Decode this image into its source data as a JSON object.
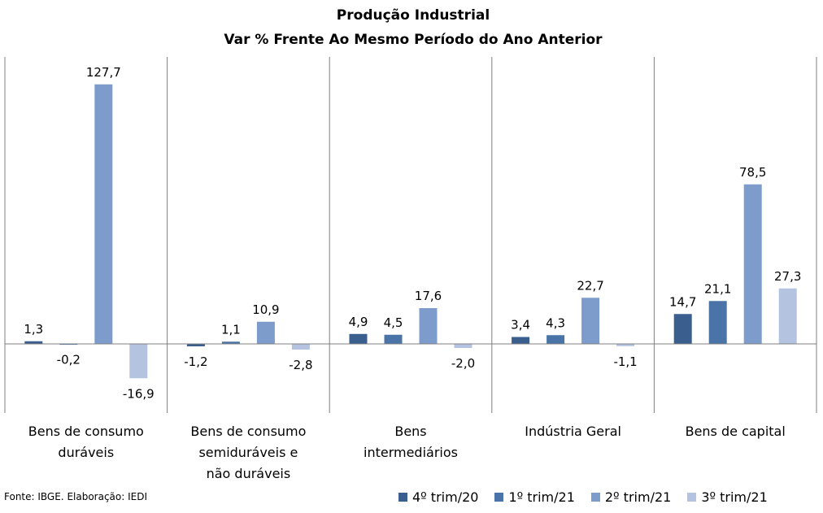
{
  "chart_data": {
    "type": "bar",
    "title": "Produção Industrial",
    "subtitle": "Var % Frente Ao Mesmo Período do Ano Anterior",
    "categories": [
      [
        "Bens de consumo",
        "duráveis"
      ],
      [
        "Bens de consumo",
        "semiduráveis e",
        "não duráveis"
      ],
      [
        "Bens",
        "intermediários"
      ],
      [
        "Indústria Geral"
      ],
      [
        "Bens de capital"
      ]
    ],
    "series": [
      {
        "name": "4º trim/20",
        "color": "#3A5F8F",
        "values": [
          1.3,
          -1.2,
          4.9,
          3.4,
          14.7
        ],
        "labels": [
          "1,3",
          "-1,2",
          "4,9",
          "3,4",
          "14,7"
        ]
      },
      {
        "name": "1º trim/21",
        "color": "#4A74A8",
        "values": [
          -0.2,
          1.1,
          4.5,
          4.3,
          21.1
        ],
        "labels": [
          "-0,2",
          "1,1",
          "4,5",
          "4,3",
          "21,1"
        ]
      },
      {
        "name": "2º trim/21",
        "color": "#7E9CCB",
        "values": [
          127.7,
          10.9,
          17.6,
          22.7,
          78.5
        ],
        "labels": [
          "127,7",
          "10,9",
          "17,6",
          "22,7",
          "78,5"
        ]
      },
      {
        "name": "3º trim/21",
        "color": "#B4C3E0",
        "values": [
          -16.9,
          -2.8,
          -2.0,
          -1.1,
          27.3
        ],
        "labels": [
          "-16,9",
          "-2,8",
          "-2,0",
          "-1,1",
          "27,3"
        ]
      }
    ],
    "ylim": [
      -35,
      142
    ],
    "grid": false,
    "legend": "bottom-right"
  },
  "source": "Fonte: IBGE. Elaboração: IEDI"
}
